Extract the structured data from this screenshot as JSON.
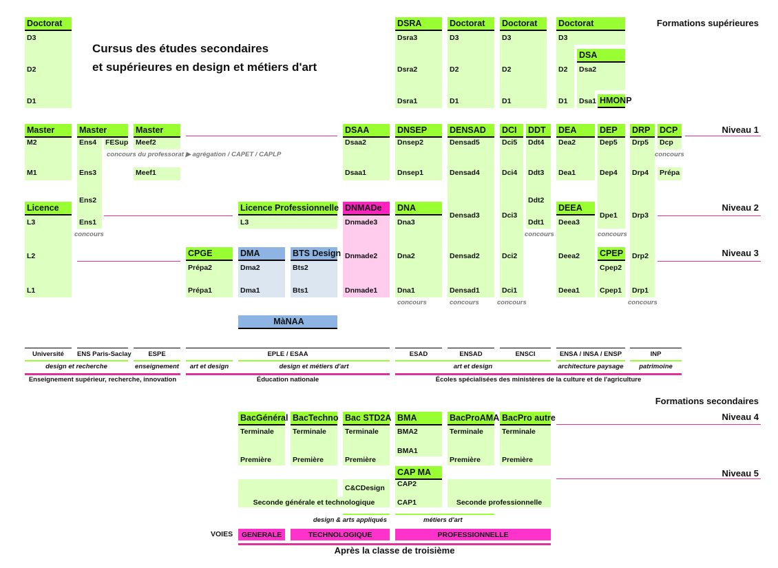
{
  "title": {
    "line1": "Cursus des études secondaires",
    "line2": "et supérieures en design et métiers d'art"
  },
  "sections": {
    "superieures": "Formations supérieures",
    "secondaires": "Formations secondaires"
  },
  "levels": [
    "Niveau 1",
    "Niveau 2",
    "Niveau 3",
    "Niveau 4",
    "Niveau 5"
  ],
  "colors": {
    "header_green": "#99ff33",
    "body_green": "#ddffc0",
    "header_pink": "#ff22c0",
    "body_pink": "#ffccee",
    "header_blue": "#8db4e2",
    "body_blue": "#dce6f1",
    "magenta": "#e0309a"
  },
  "blocks": {
    "doc_univ": {
      "header": "Doctorat",
      "rows": [
        "D3",
        "D2",
        "D1"
      ]
    },
    "dsra": {
      "header": "DSRA",
      "rows": [
        "Dsra3",
        "Dsra2",
        "Dsra1"
      ]
    },
    "doc2": {
      "header": "Doctorat",
      "rows": [
        "D3",
        "D2",
        "D1"
      ]
    },
    "doc3": {
      "header": "Doctorat",
      "rows": [
        "D3",
        "D2",
        "D1"
      ]
    },
    "doc4": {
      "header": "Doctorat",
      "rows": [
        "D3",
        "D2",
        "D1"
      ]
    },
    "dsa": {
      "header": "DSA",
      "rows": [
        "Dsa2",
        "Dsa1"
      ]
    },
    "hmonp": {
      "header": "HMONP"
    },
    "master1": {
      "header": "Master",
      "rows": [
        "M2",
        "M1"
      ]
    },
    "master_ens": {
      "header": "Master",
      "rows": [
        "Ens4",
        "Ens3",
        "Ens2",
        "Ens1"
      ],
      "extra": "FESup"
    },
    "master_meef": {
      "header": "Master",
      "rows": [
        "Meef2",
        "Meef1"
      ]
    },
    "dsaa": {
      "header": "DSAA",
      "rows": [
        "Dsaa2",
        "Dsaa1"
      ]
    },
    "dnsep": {
      "header": "DNSEP",
      "rows": [
        "Dnsep2",
        "Dnsep1"
      ]
    },
    "densad": {
      "header": "DENSAD",
      "rows": [
        "Densad5",
        "Densad4",
        "Densad3",
        "Densad2",
        "Densad1"
      ]
    },
    "dci": {
      "header": "DCI",
      "rows": [
        "Dci5",
        "Dci4",
        "Dci3",
        "Dci2",
        "Dci1"
      ]
    },
    "ddt": {
      "header": "DDT",
      "rows": [
        "Ddt4",
        "Ddt3",
        "Ddt2",
        "Ddt1"
      ]
    },
    "dea": {
      "header": "DEA",
      "rows": [
        "Dea2",
        "Dea1"
      ]
    },
    "dep": {
      "header": "DEP",
      "rows": [
        "Dep5",
        "Dep4",
        "Dpe1"
      ]
    },
    "drp": {
      "header": "DRP",
      "rows": [
        "Drp5",
        "Drp4",
        "Drp3",
        "Drp2",
        "Drp1"
      ]
    },
    "dcp": {
      "header": "DCP",
      "rows": [
        "Dcp",
        "Prépa"
      ]
    },
    "licence": {
      "header": "Licence",
      "rows": [
        "L3",
        "L2",
        "L1"
      ]
    },
    "licence_pro": {
      "header": "Licence Professionnelle",
      "rows": [
        "L3"
      ]
    },
    "dnmade": {
      "header": "DNMADe",
      "rows": [
        "Dnmade3",
        "Dnmade2",
        "Dnmade1"
      ]
    },
    "dna": {
      "header": "DNA",
      "rows": [
        "Dna3",
        "Dna2",
        "Dna1"
      ]
    },
    "deea": {
      "header": "DEEA",
      "rows": [
        "Deea3",
        "Deea2",
        "Deea1"
      ]
    },
    "cpge": {
      "header": "CPGE",
      "rows": [
        "Prépa2",
        "Prépa1"
      ]
    },
    "dma": {
      "header": "DMA",
      "rows": [
        "Dma2",
        "Dma1"
      ]
    },
    "bts": {
      "header": "BTS Design",
      "rows": [
        "Bts2",
        "Bts1"
      ]
    },
    "cpep": {
      "header": "CPEP",
      "rows": [
        "Cpep2",
        "Cpep1"
      ]
    },
    "manaa": {
      "header": "MàNAA"
    }
  },
  "notes": {
    "concours": "concours",
    "professorat": "concours du professorat ▶ agrégation / CAPET / CAPLP"
  },
  "institutions": [
    "Université",
    "ENS Paris-Saclay",
    "ESPE",
    "EPLE / ESAA",
    "ESAD",
    "ENSAD",
    "ENSCI",
    "ENSA / INSA / ENSP",
    "INP"
  ],
  "domains": [
    "design et recherche",
    "enseignement",
    "art et design",
    "design et métiers d'art",
    "art et design",
    "architecture paysage",
    "patrimoine"
  ],
  "ministries": [
    "Enseignement supérieur, recherche, innovation",
    "Éducation nationale",
    "Écoles spécialisées des ministères de la culture et de l'agriculture"
  ],
  "secondary": {
    "bac_gen": {
      "header": "BacGénéral",
      "rows": [
        "Terminale",
        "Première"
      ]
    },
    "bac_techno": {
      "header": "BacTechno",
      "rows": [
        "Terminale",
        "Première"
      ]
    },
    "bac_std2a": {
      "header": "Bac STD2A",
      "rows": [
        "Terminale",
        "Première"
      ]
    },
    "bma": {
      "header": "BMA",
      "rows": [
        "BMA2",
        "BMA1"
      ]
    },
    "bacpro_ama": {
      "header": "BacProAMA",
      "rows": [
        "Terminale",
        "Première"
      ]
    },
    "bacpro_autre": {
      "header": "BacPro autre",
      "rows": [
        "Terminale",
        "Première"
      ]
    },
    "cap_ma": {
      "header": "CAP MA",
      "rows": [
        "CAP2",
        "CAP1"
      ]
    },
    "ccdesign": "C&CDesign",
    "seconde_gt": "Seconde générale et technologique",
    "seconde_pro": "Seconde professionnelle"
  },
  "pathways": [
    "design & arts appliqués",
    "métiers d'art"
  ],
  "voies": {
    "label": "VOIES",
    "tracks": [
      "GENERALE",
      "TECHNOLOGIQUE",
      "PROFESSIONNELLE"
    ]
  },
  "after": "Après la classe de troisième"
}
